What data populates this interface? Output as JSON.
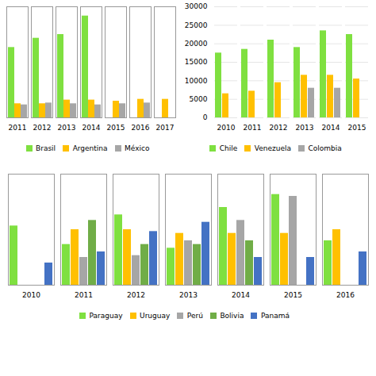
{
  "chart_data": [
    {
      "type": "bar",
      "categories": [
        "2011",
        "2012",
        "2013",
        "2014",
        "2015",
        "2016",
        "2017"
      ],
      "series": [
        {
          "name": "Brasil",
          "color": "#7FE040",
          "values": [
            19000,
            21500,
            22500,
            27500,
            null,
            null,
            null
          ]
        },
        {
          "name": "Argentina",
          "color": "#FFC000",
          "values": [
            3800,
            3800,
            4800,
            4800,
            4500,
            5000,
            5000
          ]
        },
        {
          "name": "México",
          "color": "#A6A6A6",
          "values": [
            3500,
            4000,
            3800,
            3500,
            3800,
            4000,
            null
          ]
        }
      ],
      "ylim": [
        0,
        30000
      ],
      "yticks": [],
      "tick_labels": "x",
      "legend": "bottom"
    },
    {
      "type": "bar",
      "categories": [
        "2010",
        "2011",
        "2012",
        "2013",
        "2014",
        "2015"
      ],
      "series": [
        {
          "name": "Chile",
          "color": "#7FE040",
          "values": [
            17500,
            18500,
            21000,
            19000,
            23500,
            22500
          ]
        },
        {
          "name": "Venezuela",
          "color": "#FFC000",
          "values": [
            6500,
            7200,
            9500,
            11500,
            11500,
            10500
          ]
        },
        {
          "name": "Colombia",
          "color": "#A6A6A6",
          "values": [
            null,
            null,
            null,
            8000,
            8000,
            null
          ]
        }
      ],
      "ylim": [
        0,
        30000
      ],
      "yticks": [
        0,
        5000,
        10000,
        15000,
        20000,
        25000,
        30000
      ],
      "grid": true,
      "legend": "bottom"
    },
    {
      "type": "bar",
      "categories": [
        "2010",
        "2011",
        "2012",
        "2013",
        "2014",
        "2015",
        "2016"
      ],
      "series": [
        {
          "name": "Paraguay",
          "color": "#7FE040",
          "values": [
            3200,
            2200,
            3800,
            2000,
            4200,
            4900,
            2400
          ]
        },
        {
          "name": "Uruguay",
          "color": "#FFC000",
          "values": [
            null,
            3000,
            3000,
            2800,
            2800,
            2800,
            3000
          ]
        },
        {
          "name": "Perú",
          "color": "#A6A6A6",
          "values": [
            null,
            1500,
            1600,
            2400,
            3500,
            4800,
            null
          ]
        },
        {
          "name": "Bolivia",
          "color": "#70AD47",
          "values": [
            null,
            3500,
            2200,
            2200,
            2400,
            null,
            null
          ]
        },
        {
          "name": "Panamá",
          "color": "#4472C4",
          "values": [
            1200,
            1800,
            2900,
            3400,
            1500,
            1500,
            1800
          ]
        }
      ],
      "ylim": [
        0,
        6000
      ],
      "yticks": [],
      "tick_labels": "x",
      "legend": "bottom"
    }
  ]
}
